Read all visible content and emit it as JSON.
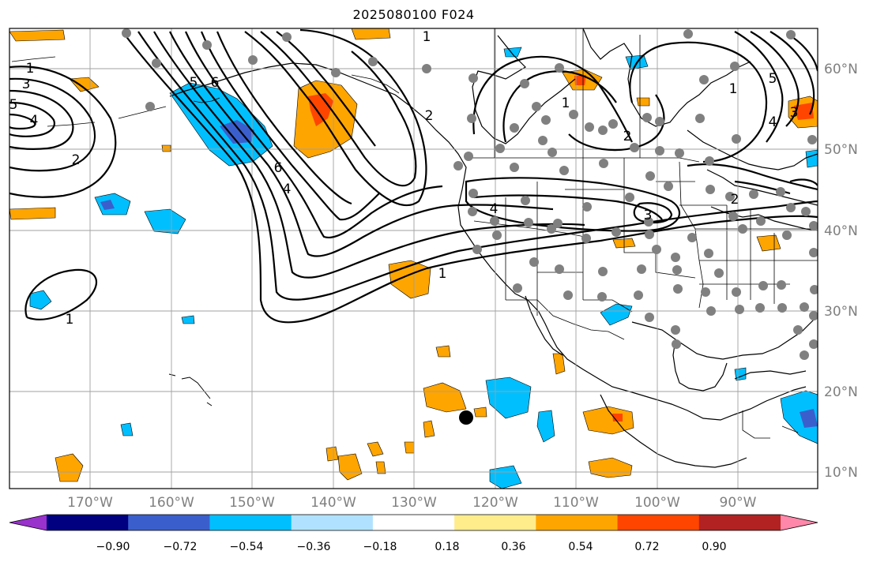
{
  "title": "2025080100 F024",
  "map": {
    "lat_labels": [
      "10°N",
      "20°N",
      "30°N",
      "40°N",
      "50°N",
      "60°N"
    ],
    "lon_labels": [
      "170°W",
      "160°W",
      "150°W",
      "140°W",
      "130°W",
      "120°W",
      "110°W",
      "100°W",
      "90°W"
    ],
    "contour_labels": [
      "1",
      "3",
      "5",
      "4",
      "2",
      "5",
      "6",
      "4",
      "1",
      "1",
      "2",
      "6",
      "5",
      "4",
      "3",
      "2",
      "1",
      "1",
      "1",
      "2",
      "3",
      "4"
    ],
    "colors": {
      "grid": "#a0a0a0",
      "coast": "#000000",
      "contour": "#000000",
      "station": "#808080",
      "marker": "#000000"
    }
  },
  "colorbar": {
    "ticks": [
      "−0.90",
      "−0.72",
      "−0.54",
      "−0.36",
      "−0.18",
      "0.18",
      "0.36",
      "0.54",
      "0.72",
      "0.90"
    ],
    "colors": [
      "#9932cc",
      "#000080",
      "#3a5fcd",
      "#00bfff",
      "#b0e2ff",
      "#ffffff",
      "#ffec8b",
      "#ffa500",
      "#ff4500",
      "#b22222",
      "#ff88aa"
    ]
  }
}
